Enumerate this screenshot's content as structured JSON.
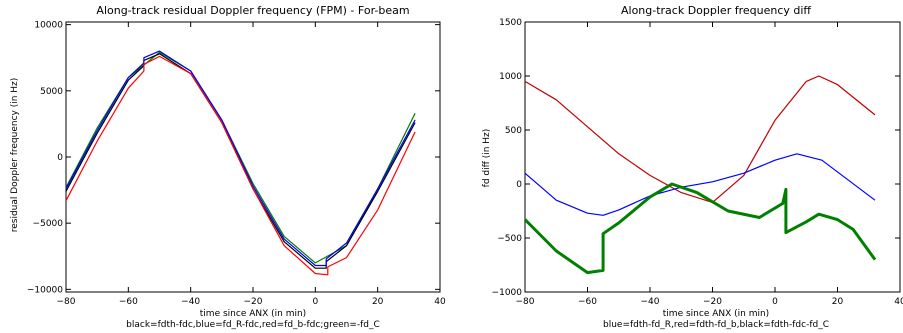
{
  "chart_data": [
    {
      "type": "line",
      "title": "Along-track residual Doppler frequency (FPM) - For-beam",
      "xlabel": "time since ANX (in min)",
      "ylabel": "residual Doppler frequency (in Hz)",
      "caption": "black=fdth-fdc,blue=fd_R-fdc,red=fd_b-fdc;green=-fd_C",
      "xlim": [
        -80,
        40
      ],
      "ylim": [
        -10200,
        10200
      ],
      "xticks": [
        -80,
        -60,
        -40,
        -20,
        0,
        20,
        40
      ],
      "yticks": [
        -10000,
        -5000,
        0,
        5000,
        10000
      ],
      "series": [
        {
          "color": "#008000",
          "x": [
            -80,
            -70,
            -60,
            -50,
            -40,
            -30,
            -20,
            -10,
            0,
            10,
            20,
            32
          ],
          "y": [
            -2300,
            2200,
            6000,
            7900,
            6500,
            2800,
            -2000,
            -6000,
            -8000,
            -6700,
            -2400,
            3300
          ]
        },
        {
          "color": "#000000",
          "x": [
            -80,
            -70,
            -60,
            -55,
            -55,
            -50,
            -40,
            -30,
            -20,
            -10,
            0,
            3.5,
            3.5,
            10,
            20,
            32
          ],
          "y": [
            -2600,
            1800,
            5800,
            6900,
            7300,
            7800,
            6300,
            2600,
            -2400,
            -6400,
            -8400,
            -8400,
            -7900,
            -6700,
            -2600,
            2600
          ]
        },
        {
          "color": "#0000ff",
          "x": [
            -80,
            -70,
            -60,
            -55,
            -55,
            -50,
            -40,
            -30,
            -20,
            -10,
            0,
            3.5,
            3.5,
            10,
            20,
            32
          ],
          "y": [
            -2400,
            2000,
            6000,
            7100,
            7500,
            8000,
            6500,
            2800,
            -2200,
            -6200,
            -8200,
            -8200,
            -7700,
            -6500,
            -2400,
            2800
          ]
        },
        {
          "color": "#ff0000",
          "x": [
            -80,
            -70,
            -60,
            -55,
            -55,
            -50,
            -40,
            -30,
            -20,
            -10,
            0,
            4,
            4,
            10,
            20,
            32
          ],
          "y": [
            -3300,
            1200,
            5200,
            6500,
            7000,
            7600,
            6300,
            2600,
            -2400,
            -6700,
            -8800,
            -8900,
            -8300,
            -7600,
            -4000,
            1900
          ]
        }
      ]
    },
    {
      "type": "line",
      "title": "Along-track Doppler frequency diff",
      "xlabel": "time since ANX (in min)",
      "ylabel": "fd diff (in Hz)",
      "caption": "blue=fdth-fd_R,red=fdth-fd_b,black=fdth-fdc-fd_C",
      "xlim": [
        -80,
        40
      ],
      "ylim": [
        -1000,
        1500
      ],
      "xticks": [
        -80,
        -60,
        -40,
        -20,
        0,
        20,
        40
      ],
      "yticks": [
        -1000,
        -500,
        0,
        500,
        1000,
        1500
      ],
      "series": [
        {
          "color": "#c00000",
          "x": [
            -80,
            -70,
            -60,
            -50,
            -40,
            -30,
            -20,
            -10,
            0,
            10,
            14,
            20,
            32
          ],
          "y": [
            950,
            780,
            530,
            280,
            80,
            -80,
            -170,
            80,
            590,
            950,
            1000,
            920,
            640
          ]
        },
        {
          "color": "#0000ff",
          "x": [
            -80,
            -70,
            -60,
            -55,
            -50,
            -40,
            -30,
            -20,
            -10,
            0,
            7,
            15,
            32
          ],
          "y": [
            100,
            -150,
            -270,
            -290,
            -240,
            -110,
            -30,
            20,
            100,
            220,
            280,
            220,
            -150
          ]
        },
        {
          "color": "#008000",
          "thick": true,
          "x": [
            -80,
            -70,
            -60,
            -55,
            -55,
            -50,
            -40,
            -33,
            -25,
            -15,
            -5,
            2.5,
            3.5,
            3.5,
            10,
            14,
            20,
            25,
            32
          ],
          "y": [
            -330,
            -620,
            -820,
            -800,
            -460,
            -360,
            -120,
            0,
            -80,
            -250,
            -310,
            -180,
            -50,
            -450,
            -350,
            -280,
            -330,
            -420,
            -700
          ]
        }
      ]
    }
  ]
}
